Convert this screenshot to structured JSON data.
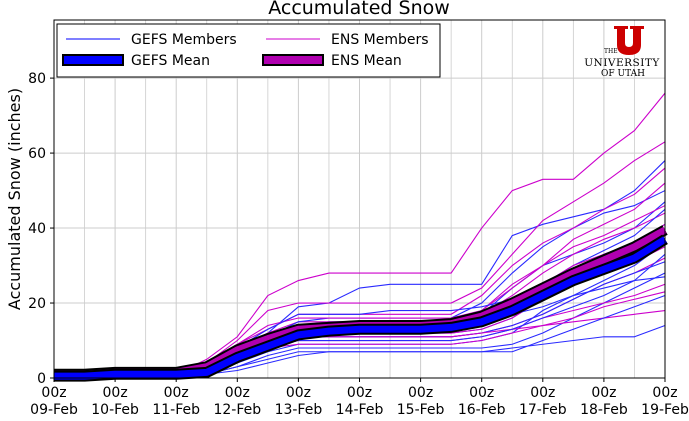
{
  "chart_data": {
    "type": "line",
    "title": "Accumulated Snow",
    "xlabel": "",
    "ylabel": "Accumulated Snow (inches)",
    "ylim": [
      0,
      95.5
    ],
    "yticks": [
      0,
      20,
      40,
      60,
      80
    ],
    "xtick_labels": [
      [
        "00z",
        "09-Feb"
      ],
      [
        "00z",
        "10-Feb"
      ],
      [
        "00z",
        "11-Feb"
      ],
      [
        "00z",
        "12-Feb"
      ],
      [
        "00z",
        "13-Feb"
      ],
      [
        "00z",
        "14-Feb"
      ],
      [
        "00z",
        "15-Feb"
      ],
      [
        "00z",
        "16-Feb"
      ],
      [
        "00z",
        "17-Feb"
      ],
      [
        "00z",
        "18-Feb"
      ],
      [
        "00z",
        "19-Feb"
      ]
    ],
    "x_hours": [
      0,
      12,
      24,
      36,
      48,
      60,
      72,
      84,
      96,
      108,
      120,
      132,
      144,
      156,
      168,
      180,
      192,
      204,
      216,
      228,
      240
    ],
    "grid": true,
    "legend": {
      "placement": "top-left",
      "entries": [
        "GEFS Members",
        "ENS Members",
        "GEFS Mean",
        "ENS Mean"
      ]
    },
    "colors": {
      "gefs_member": "#2a2aff",
      "ens_member": "#cc00cc",
      "gefs_mean": "#0000ff",
      "ens_mean": "#b000b0",
      "mean_edge": "#000000"
    },
    "gefs_members": [
      [
        0,
        0,
        1,
        1,
        1,
        1,
        4,
        7,
        9,
        9,
        9,
        9,
        9,
        9,
        10,
        12,
        18,
        22,
        26,
        30,
        36
      ],
      [
        0,
        0,
        1,
        1,
        1,
        2,
        6,
        10,
        14,
        15,
        15,
        15,
        15,
        15,
        17,
        24,
        30,
        33,
        36,
        40,
        47
      ],
      [
        0,
        0,
        1,
        1,
        1,
        1,
        3,
        6,
        8,
        8,
        8,
        8,
        8,
        8,
        8,
        9,
        12,
        16,
        20,
        24,
        28
      ],
      [
        0,
        0,
        1,
        1,
        1,
        2,
        7,
        12,
        19,
        20,
        24,
        25,
        25,
        25,
        25,
        38,
        41,
        43,
        45,
        50,
        58
      ],
      [
        0,
        0,
        1,
        1,
        1,
        1,
        5,
        9,
        12,
        12,
        12,
        12,
        12,
        12,
        13,
        16,
        22,
        28,
        33,
        36,
        41
      ],
      [
        0,
        0,
        1,
        1,
        1,
        1,
        3,
        5,
        7,
        7,
        7,
        7,
        7,
        7,
        7,
        8,
        9,
        10,
        11,
        11,
        14
      ],
      [
        0,
        0,
        1,
        1,
        1,
        2,
        6,
        11,
        15,
        16,
        16,
        16,
        16,
        16,
        20,
        28,
        35,
        40,
        44,
        46,
        50
      ],
      [
        0,
        0,
        1,
        1,
        1,
        1,
        4,
        8,
        11,
        11,
        11,
        11,
        11,
        11,
        12,
        14,
        17,
        21,
        25,
        28,
        31
      ],
      [
        0,
        0,
        1,
        1,
        1,
        2,
        5,
        9,
        13,
        14,
        14,
        14,
        14,
        14,
        15,
        17,
        19,
        22,
        24,
        26,
        27
      ],
      [
        0,
        0,
        1,
        1,
        1,
        1,
        5,
        8,
        10,
        10,
        10,
        10,
        10,
        10,
        11,
        13,
        16,
        19,
        22,
        26,
        33
      ],
      [
        0,
        0,
        1,
        1,
        1,
        2,
        8,
        13,
        17,
        17,
        17,
        18,
        18,
        18,
        19,
        21,
        25,
        30,
        34,
        38,
        45
      ],
      [
        0,
        0,
        1,
        1,
        1,
        1,
        2,
        4,
        6,
        7,
        7,
        7,
        7,
        7,
        7,
        7,
        10,
        13,
        16,
        19,
        22
      ]
    ],
    "ens_members": [
      [
        1,
        1,
        1,
        1,
        1,
        5,
        11,
        22,
        26,
        28,
        28,
        28,
        28,
        28,
        40,
        50,
        53,
        53,
        60,
        66,
        76
      ],
      [
        1,
        1,
        1,
        1,
        1,
        3,
        8,
        11,
        14,
        14,
        14,
        14,
        14,
        14,
        18,
        25,
        30,
        35,
        38,
        42,
        46
      ],
      [
        1,
        1,
        1,
        1,
        1,
        2,
        6,
        9,
        11,
        11,
        11,
        11,
        11,
        11,
        12,
        14,
        17,
        21,
        25,
        28,
        32
      ],
      [
        1,
        1,
        1,
        1,
        1,
        4,
        10,
        18,
        20,
        20,
        20,
        20,
        20,
        20,
        24,
        33,
        42,
        47,
        52,
        58,
        63
      ],
      [
        1,
        1,
        1,
        1,
        1,
        2,
        5,
        8,
        10,
        10,
        10,
        10,
        10,
        10,
        11,
        13,
        16,
        18,
        20,
        22,
        25
      ],
      [
        1,
        1,
        1,
        1,
        1,
        3,
        8,
        12,
        15,
        15,
        15,
        15,
        15,
        15,
        17,
        22,
        28,
        33,
        37,
        40,
        44
      ],
      [
        1,
        1,
        1,
        1,
        1,
        2,
        7,
        10,
        12,
        12,
        12,
        12,
        12,
        12,
        13,
        16,
        21,
        25,
        28,
        31,
        35
      ],
      [
        1,
        1,
        1,
        1,
        1,
        3,
        9,
        13,
        17,
        17,
        17,
        17,
        17,
        17,
        22,
        30,
        36,
        40,
        45,
        49,
        56
      ],
      [
        1,
        1,
        1,
        1,
        1,
        2,
        6,
        9,
        11,
        11,
        11,
        11,
        11,
        11,
        12,
        13,
        14,
        15,
        16,
        17,
        18
      ],
      [
        1,
        1,
        1,
        1,
        1,
        4,
        9,
        14,
        16,
        16,
        16,
        16,
        16,
        16,
        18,
        24,
        30,
        37,
        41,
        45,
        52
      ],
      [
        1,
        1,
        1,
        1,
        1,
        2,
        7,
        10,
        13,
        13,
        13,
        13,
        13,
        13,
        14,
        17,
        22,
        26,
        30,
        34,
        38
      ],
      [
        1,
        1,
        1,
        1,
        1,
        3,
        7,
        11,
        13,
        13,
        13,
        13,
        13,
        13,
        15,
        20,
        25,
        30,
        33,
        36,
        41
      ],
      [
        1,
        1,
        1,
        1,
        1,
        2,
        5,
        8,
        9,
        9,
        9,
        9,
        9,
        9,
        10,
        12,
        14,
        16,
        19,
        21,
        23
      ]
    ],
    "gefs_mean": [
      0.5,
      0.5,
      1,
      1,
      1,
      1.5,
      5.5,
      8.5,
      11.5,
      12.5,
      13,
      13,
      13,
      13.5,
      15,
      18,
      22,
      26,
      29,
      32,
      37
    ],
    "ens_mean": [
      1,
      1,
      1.5,
      1.5,
      1.5,
      3,
      7.5,
      10.5,
      13,
      13.5,
      14,
      14,
      14,
      14.5,
      16.5,
      20,
      24,
      28,
      31.5,
      35,
      39.5
    ]
  },
  "logo": {
    "line1": "THE",
    "line2": "UNIVERSITY",
    "line3": "OF UTAH"
  }
}
